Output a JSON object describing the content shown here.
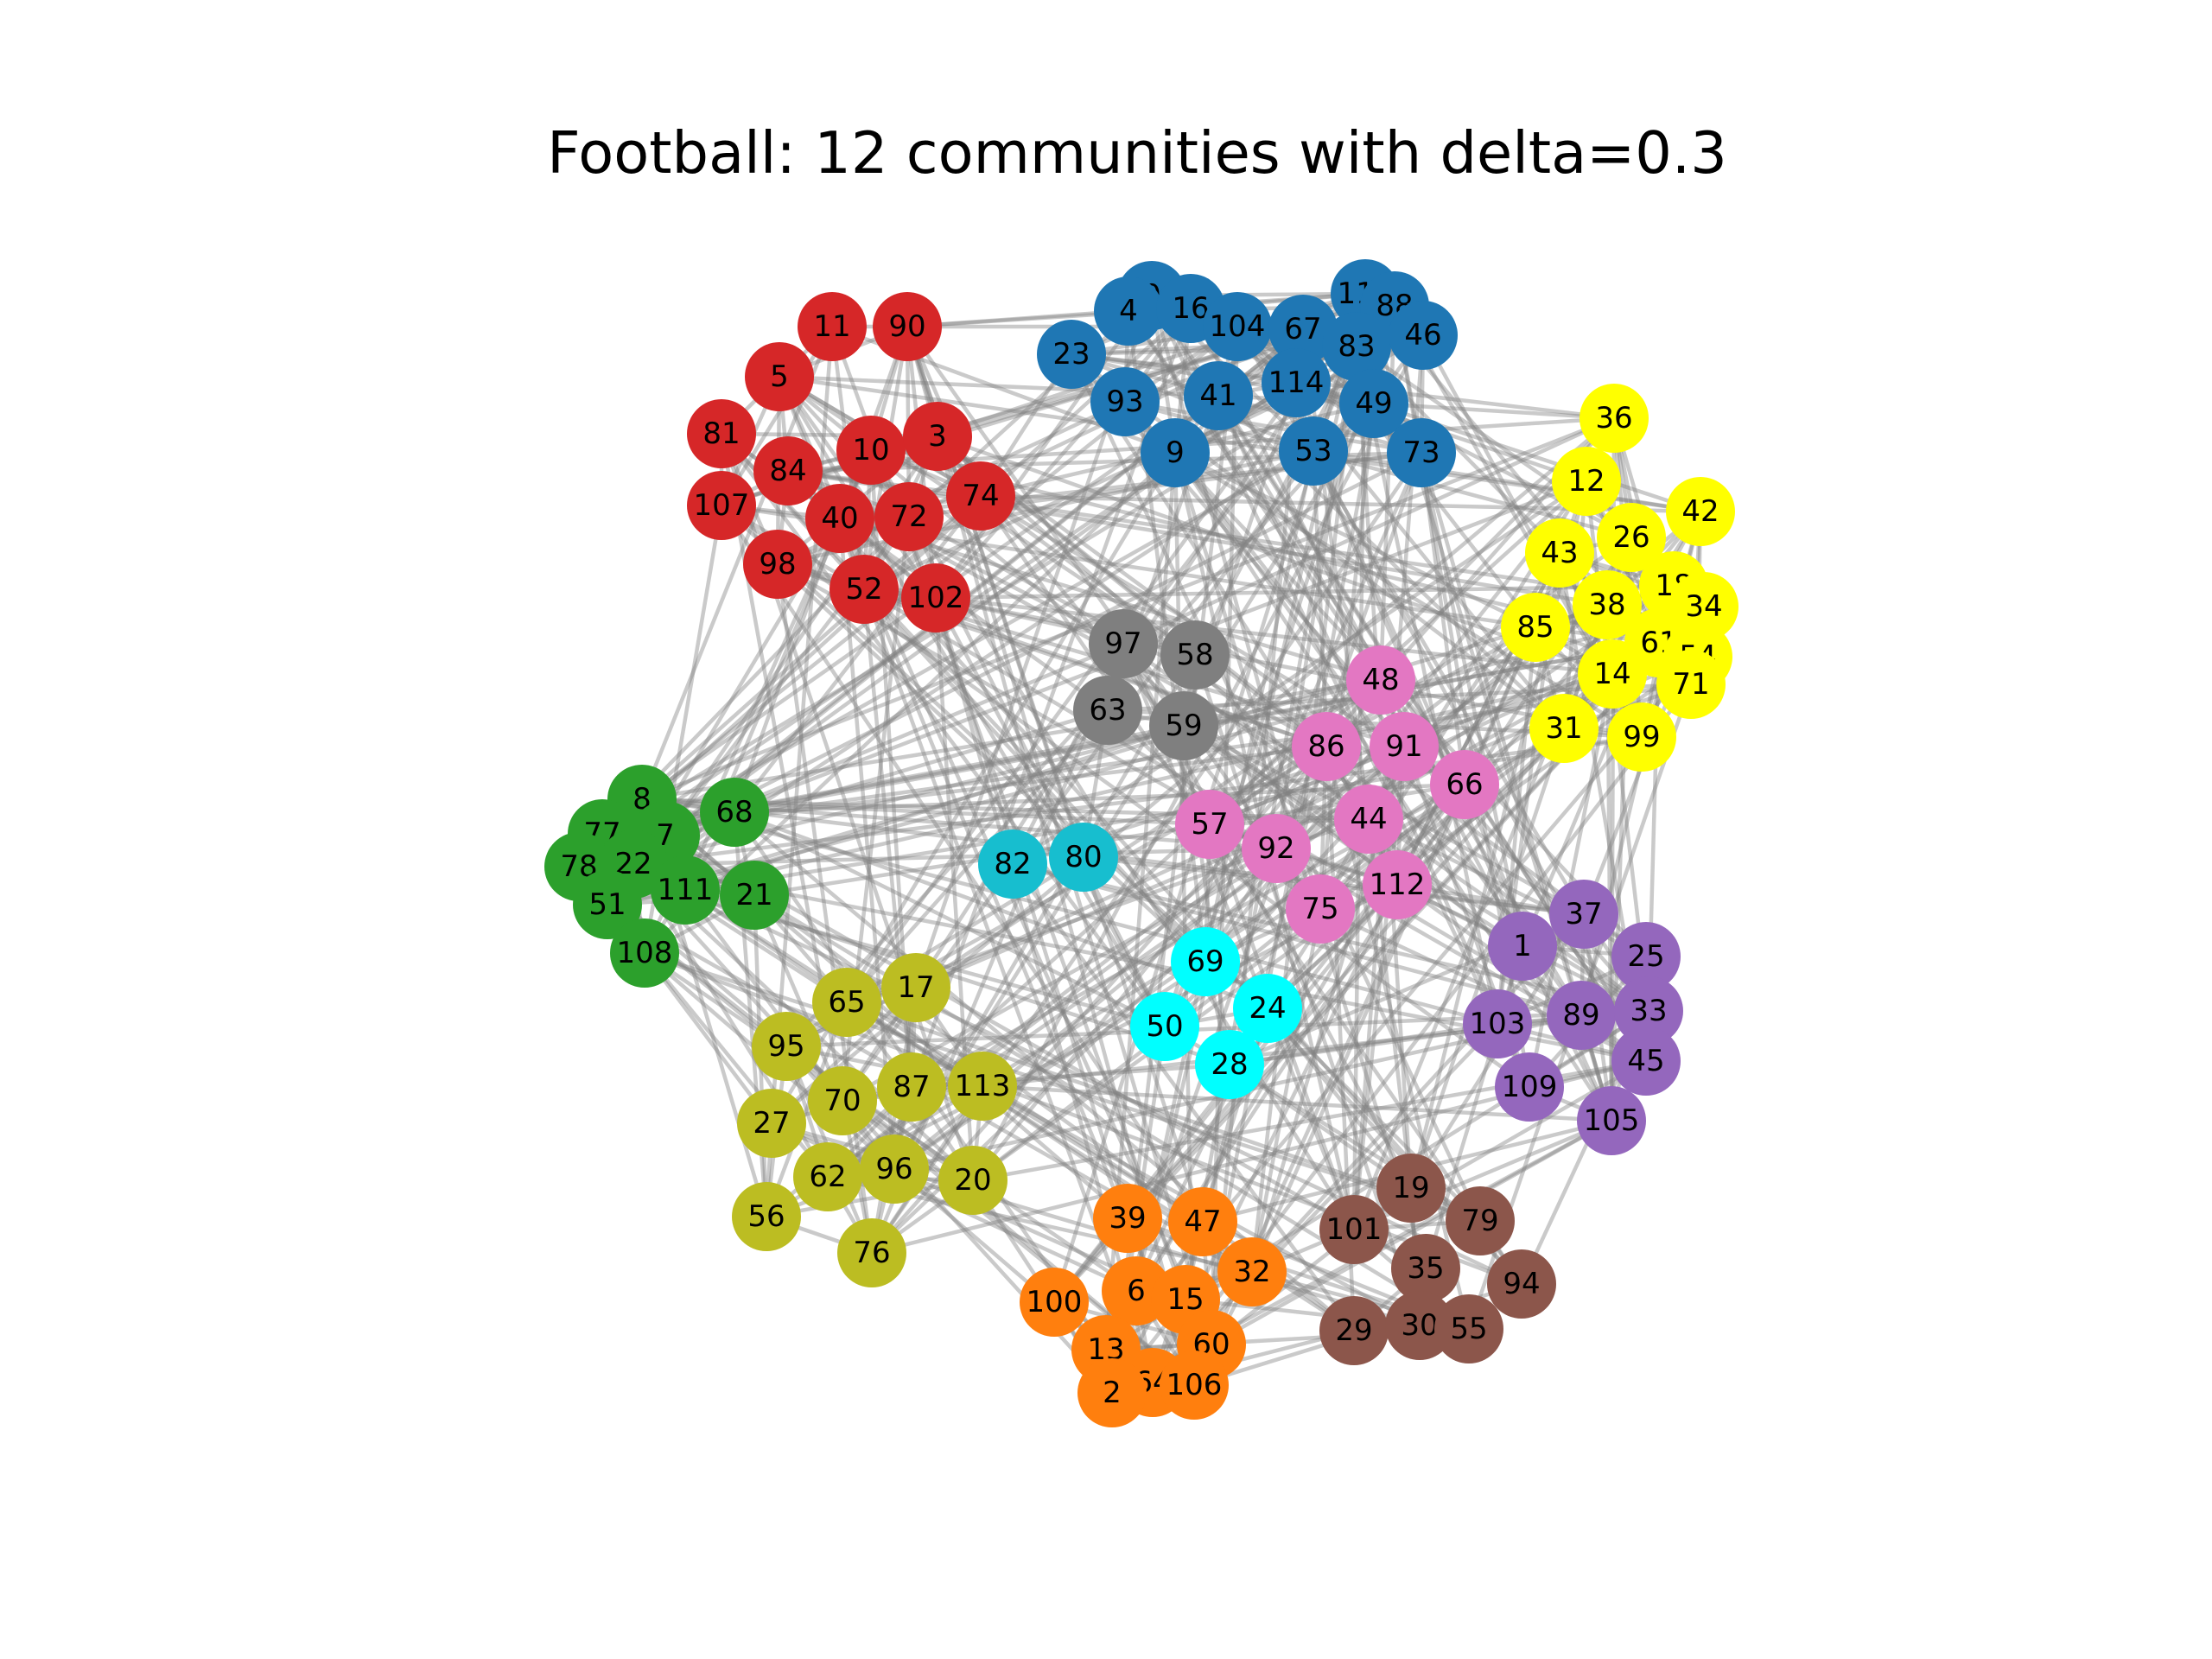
{
  "title": "Football: 12 communities with delta=0.3",
  "communities": [
    {
      "color": "#d62728",
      "nodes": [
        11,
        90,
        5,
        81,
        10,
        3,
        84,
        107,
        40,
        72,
        74,
        98,
        52,
        102
      ]
    },
    {
      "color": "#1f77b4",
      "nodes": [
        0,
        4,
        16,
        104,
        23,
        67,
        110,
        88,
        83,
        46,
        93,
        41,
        114,
        49,
        9,
        53,
        73
      ]
    },
    {
      "color": "#ffff00",
      "nodes": [
        36,
        12,
        42,
        43,
        26,
        18,
        38,
        34,
        85,
        61,
        54,
        14,
        71,
        31,
        99
      ]
    },
    {
      "color": "#7f7f7f",
      "nodes": [
        97,
        58,
        63,
        59
      ]
    },
    {
      "color": "#e377c2",
      "nodes": [
        48,
        86,
        91,
        66,
        57,
        44,
        92,
        112,
        75
      ]
    },
    {
      "color": "#2ca02c",
      "nodes": [
        8,
        68,
        77,
        7,
        78,
        22,
        111,
        21,
        51,
        108
      ]
    },
    {
      "color": "#17becf",
      "nodes": [
        82,
        80
      ]
    },
    {
      "color": "#00ffff",
      "nodes": [
        69,
        24,
        50,
        28
      ]
    },
    {
      "color": "#9467bd",
      "nodes": [
        37,
        1,
        25,
        103,
        89,
        33,
        45,
        109,
        105
      ]
    },
    {
      "color": "#bcbd22",
      "nodes": [
        65,
        17,
        95,
        70,
        87,
        113,
        27,
        62,
        96,
        20,
        56,
        76
      ]
    },
    {
      "color": "#ff7f0e",
      "nodes": [
        39,
        47,
        32,
        100,
        6,
        15,
        13,
        60,
        64,
        106,
        2
      ]
    },
    {
      "color": "#8c564b",
      "nodes": [
        19,
        101,
        79,
        35,
        94,
        29,
        30,
        55
      ]
    }
  ],
  "edge_color": "#808080"
}
